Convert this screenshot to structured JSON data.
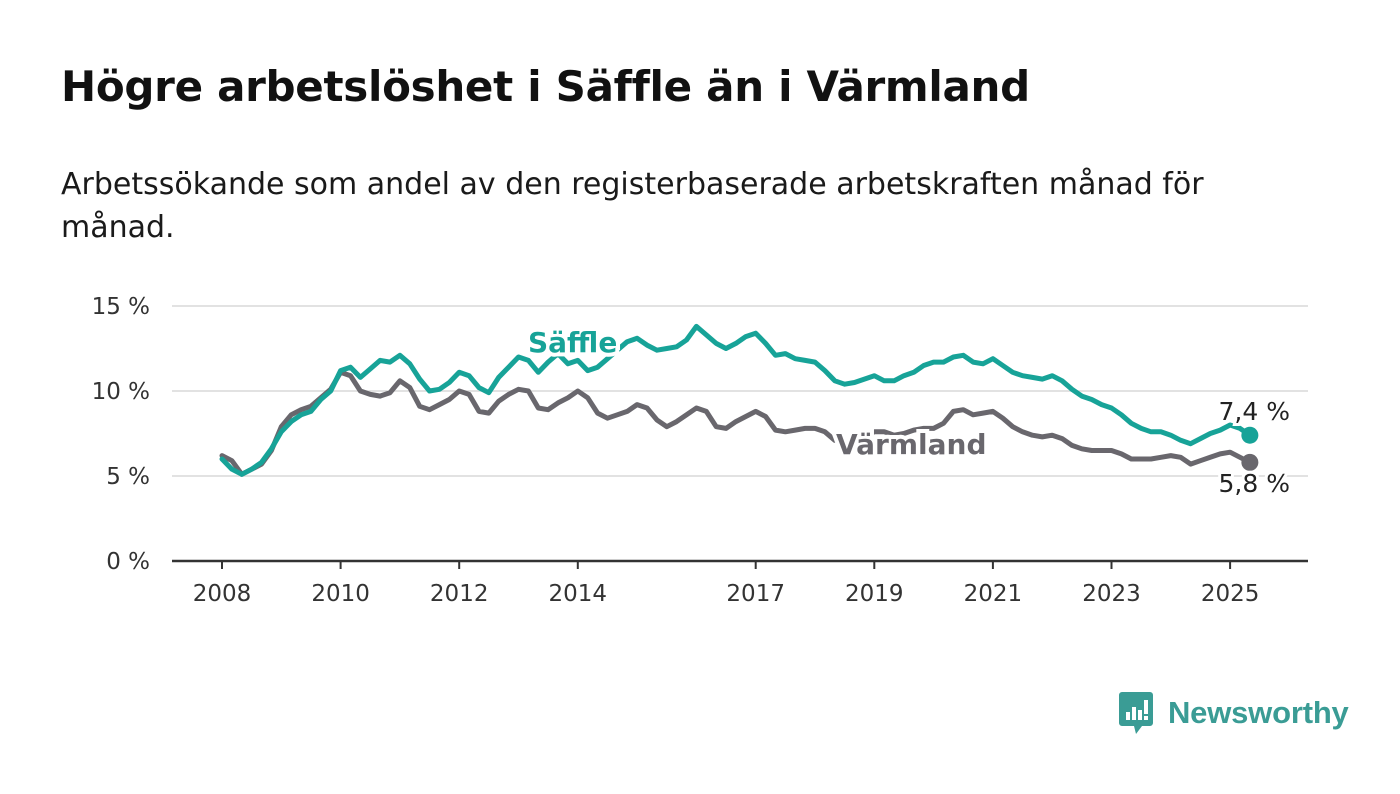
{
  "chart_data": {
    "type": "line",
    "title": "Högre arbetslöshet i Säffle än i Värmland",
    "subtitle": "Arbetssökande som andel av den registerbaserade arbetskraften månad för månad.",
    "ylim": [
      0,
      15
    ],
    "yticks": [
      "0 %",
      "5 %",
      "10 %",
      "15 %"
    ],
    "grid": true,
    "x_ticks": [
      "2008",
      "2010",
      "2012",
      "2014",
      "2017",
      "2019",
      "2021",
      "2023",
      "2025"
    ],
    "series": [
      {
        "name": "Säffle",
        "color": "#17a398",
        "end_label": "7,4 %",
        "points": [
          [
            "2008-01",
            6.0
          ],
          [
            "2008-03",
            5.4
          ],
          [
            "2008-05",
            5.1
          ],
          [
            "2008-07",
            5.4
          ],
          [
            "2008-09",
            5.8
          ],
          [
            "2008-11",
            6.6
          ],
          [
            "2009-01",
            7.6
          ],
          [
            "2009-03",
            8.2
          ],
          [
            "2009-05",
            8.6
          ],
          [
            "2009-07",
            8.8
          ],
          [
            "2009-09",
            9.5
          ],
          [
            "2009-11",
            10.0
          ],
          [
            "2010-01",
            11.2
          ],
          [
            "2010-03",
            11.4
          ],
          [
            "2010-05",
            10.8
          ],
          [
            "2010-07",
            11.3
          ],
          [
            "2010-09",
            11.8
          ],
          [
            "2010-11",
            11.7
          ],
          [
            "2011-01",
            12.1
          ],
          [
            "2011-03",
            11.6
          ],
          [
            "2011-05",
            10.7
          ],
          [
            "2011-07",
            10.0
          ],
          [
            "2011-09",
            10.1
          ],
          [
            "2011-11",
            10.5
          ],
          [
            "2012-01",
            11.1
          ],
          [
            "2012-03",
            10.9
          ],
          [
            "2012-05",
            10.2
          ],
          [
            "2012-07",
            9.9
          ],
          [
            "2012-09",
            10.8
          ],
          [
            "2012-11",
            11.4
          ],
          [
            "2013-01",
            12.0
          ],
          [
            "2013-03",
            11.8
          ],
          [
            "2013-05",
            11.1
          ],
          [
            "2013-07",
            11.7
          ],
          [
            "2013-09",
            12.2
          ],
          [
            "2013-11",
            11.6
          ],
          [
            "2014-01",
            11.8
          ],
          [
            "2014-03",
            11.2
          ],
          [
            "2014-05",
            11.4
          ],
          [
            "2014-07",
            11.9
          ],
          [
            "2014-09",
            12.4
          ],
          [
            "2014-11",
            12.9
          ],
          [
            "2015-01",
            13.1
          ],
          [
            "2015-03",
            12.7
          ],
          [
            "2015-05",
            12.4
          ],
          [
            "2015-07",
            12.5
          ],
          [
            "2015-09",
            12.6
          ],
          [
            "2015-11",
            13.0
          ],
          [
            "2016-01",
            13.8
          ],
          [
            "2016-03",
            13.3
          ],
          [
            "2016-05",
            12.8
          ],
          [
            "2016-07",
            12.5
          ],
          [
            "2016-09",
            12.8
          ],
          [
            "2016-11",
            13.2
          ],
          [
            "2017-01",
            13.4
          ],
          [
            "2017-03",
            12.8
          ],
          [
            "2017-05",
            12.1
          ],
          [
            "2017-07",
            12.2
          ],
          [
            "2017-09",
            11.9
          ],
          [
            "2017-11",
            11.8
          ],
          [
            "2018-01",
            11.7
          ],
          [
            "2018-03",
            11.2
          ],
          [
            "2018-05",
            10.6
          ],
          [
            "2018-07",
            10.4
          ],
          [
            "2018-09",
            10.5
          ],
          [
            "2018-11",
            10.7
          ],
          [
            "2019-01",
            10.9
          ],
          [
            "2019-03",
            10.6
          ],
          [
            "2019-05",
            10.6
          ],
          [
            "2019-07",
            10.9
          ],
          [
            "2019-09",
            11.1
          ],
          [
            "2019-11",
            11.5
          ],
          [
            "2020-01",
            11.7
          ],
          [
            "2020-03",
            11.7
          ],
          [
            "2020-05",
            12.0
          ],
          [
            "2020-07",
            12.1
          ],
          [
            "2020-09",
            11.7
          ],
          [
            "2020-11",
            11.6
          ],
          [
            "2021-01",
            11.9
          ],
          [
            "2021-03",
            11.5
          ],
          [
            "2021-05",
            11.1
          ],
          [
            "2021-07",
            10.9
          ],
          [
            "2021-09",
            10.8
          ],
          [
            "2021-11",
            10.7
          ],
          [
            "2022-01",
            10.9
          ],
          [
            "2022-03",
            10.6
          ],
          [
            "2022-05",
            10.1
          ],
          [
            "2022-07",
            9.7
          ],
          [
            "2022-09",
            9.5
          ],
          [
            "2022-11",
            9.2
          ],
          [
            "2023-01",
            9.0
          ],
          [
            "2023-03",
            8.6
          ],
          [
            "2023-05",
            8.1
          ],
          [
            "2023-07",
            7.8
          ],
          [
            "2023-09",
            7.6
          ],
          [
            "2023-11",
            7.6
          ],
          [
            "2024-01",
            7.4
          ],
          [
            "2024-03",
            7.1
          ],
          [
            "2024-05",
            6.9
          ],
          [
            "2024-07",
            7.2
          ],
          [
            "2024-09",
            7.5
          ],
          [
            "2024-11",
            7.7
          ],
          [
            "2025-01",
            8.0
          ],
          [
            "2025-03",
            7.8
          ],
          [
            "2025-05",
            7.4
          ]
        ]
      },
      {
        "name": "Värmland",
        "color": "#69676d",
        "end_label": "5,8 %",
        "points": [
          [
            "2008-01",
            6.2
          ],
          [
            "2008-03",
            5.9
          ],
          [
            "2008-05",
            5.1
          ],
          [
            "2008-07",
            5.4
          ],
          [
            "2008-09",
            5.7
          ],
          [
            "2008-11",
            6.5
          ],
          [
            "2009-01",
            7.9
          ],
          [
            "2009-03",
            8.6
          ],
          [
            "2009-05",
            8.9
          ],
          [
            "2009-07",
            9.1
          ],
          [
            "2009-09",
            9.6
          ],
          [
            "2009-11",
            10.1
          ],
          [
            "2010-01",
            11.1
          ],
          [
            "2010-03",
            10.9
          ],
          [
            "2010-05",
            10.0
          ],
          [
            "2010-07",
            9.8
          ],
          [
            "2010-09",
            9.7
          ],
          [
            "2010-11",
            9.9
          ],
          [
            "2011-01",
            10.6
          ],
          [
            "2011-03",
            10.2
          ],
          [
            "2011-05",
            9.1
          ],
          [
            "2011-07",
            8.9
          ],
          [
            "2011-09",
            9.2
          ],
          [
            "2011-11",
            9.5
          ],
          [
            "2012-01",
            10.0
          ],
          [
            "2012-03",
            9.8
          ],
          [
            "2012-05",
            8.8
          ],
          [
            "2012-07",
            8.7
          ],
          [
            "2012-09",
            9.4
          ],
          [
            "2012-11",
            9.8
          ],
          [
            "2013-01",
            10.1
          ],
          [
            "2013-03",
            10.0
          ],
          [
            "2013-05",
            9.0
          ],
          [
            "2013-07",
            8.9
          ],
          [
            "2013-09",
            9.3
          ],
          [
            "2013-11",
            9.6
          ],
          [
            "2014-01",
            10.0
          ],
          [
            "2014-03",
            9.6
          ],
          [
            "2014-05",
            8.7
          ],
          [
            "2014-07",
            8.4
          ],
          [
            "2014-09",
            8.6
          ],
          [
            "2014-11",
            8.8
          ],
          [
            "2015-01",
            9.2
          ],
          [
            "2015-03",
            9.0
          ],
          [
            "2015-05",
            8.3
          ],
          [
            "2015-07",
            7.9
          ],
          [
            "2015-09",
            8.2
          ],
          [
            "2015-11",
            8.6
          ],
          [
            "2016-01",
            9.0
          ],
          [
            "2016-03",
            8.8
          ],
          [
            "2016-05",
            7.9
          ],
          [
            "2016-07",
            7.8
          ],
          [
            "2016-09",
            8.2
          ],
          [
            "2016-11",
            8.5
          ],
          [
            "2017-01",
            8.8
          ],
          [
            "2017-03",
            8.5
          ],
          [
            "2017-05",
            7.7
          ],
          [
            "2017-07",
            7.6
          ],
          [
            "2017-09",
            7.7
          ],
          [
            "2017-11",
            7.8
          ],
          [
            "2018-01",
            7.8
          ],
          [
            "2018-03",
            7.6
          ],
          [
            "2018-05",
            7.1
          ],
          [
            "2018-07",
            7.0
          ],
          [
            "2018-09",
            7.1
          ],
          [
            "2018-11",
            7.3
          ],
          [
            "2019-01",
            7.6
          ],
          [
            "2019-03",
            7.6
          ],
          [
            "2019-05",
            7.4
          ],
          [
            "2019-07",
            7.5
          ],
          [
            "2019-09",
            7.7
          ],
          [
            "2019-11",
            7.8
          ],
          [
            "2020-01",
            7.8
          ],
          [
            "2020-03",
            8.1
          ],
          [
            "2020-05",
            8.8
          ],
          [
            "2020-07",
            8.9
          ],
          [
            "2020-09",
            8.6
          ],
          [
            "2020-11",
            8.7
          ],
          [
            "2021-01",
            8.8
          ],
          [
            "2021-03",
            8.4
          ],
          [
            "2021-05",
            7.9
          ],
          [
            "2021-07",
            7.6
          ],
          [
            "2021-09",
            7.4
          ],
          [
            "2021-11",
            7.3
          ],
          [
            "2022-01",
            7.4
          ],
          [
            "2022-03",
            7.2
          ],
          [
            "2022-05",
            6.8
          ],
          [
            "2022-07",
            6.6
          ],
          [
            "2022-09",
            6.5
          ],
          [
            "2022-11",
            6.5
          ],
          [
            "2023-01",
            6.5
          ],
          [
            "2023-03",
            6.3
          ],
          [
            "2023-05",
            6.0
          ],
          [
            "2023-07",
            6.0
          ],
          [
            "2023-09",
            6.0
          ],
          [
            "2023-11",
            6.1
          ],
          [
            "2024-01",
            6.2
          ],
          [
            "2024-03",
            6.1
          ],
          [
            "2024-05",
            5.7
          ],
          [
            "2024-07",
            5.9
          ],
          [
            "2024-09",
            6.1
          ],
          [
            "2024-11",
            6.3
          ],
          [
            "2025-01",
            6.4
          ],
          [
            "2025-03",
            6.1
          ],
          [
            "2025-05",
            5.8
          ]
        ]
      }
    ]
  },
  "brand": {
    "name": "Newsworthy",
    "icon": "chart-bubble-icon",
    "color": "#3a9c95"
  }
}
